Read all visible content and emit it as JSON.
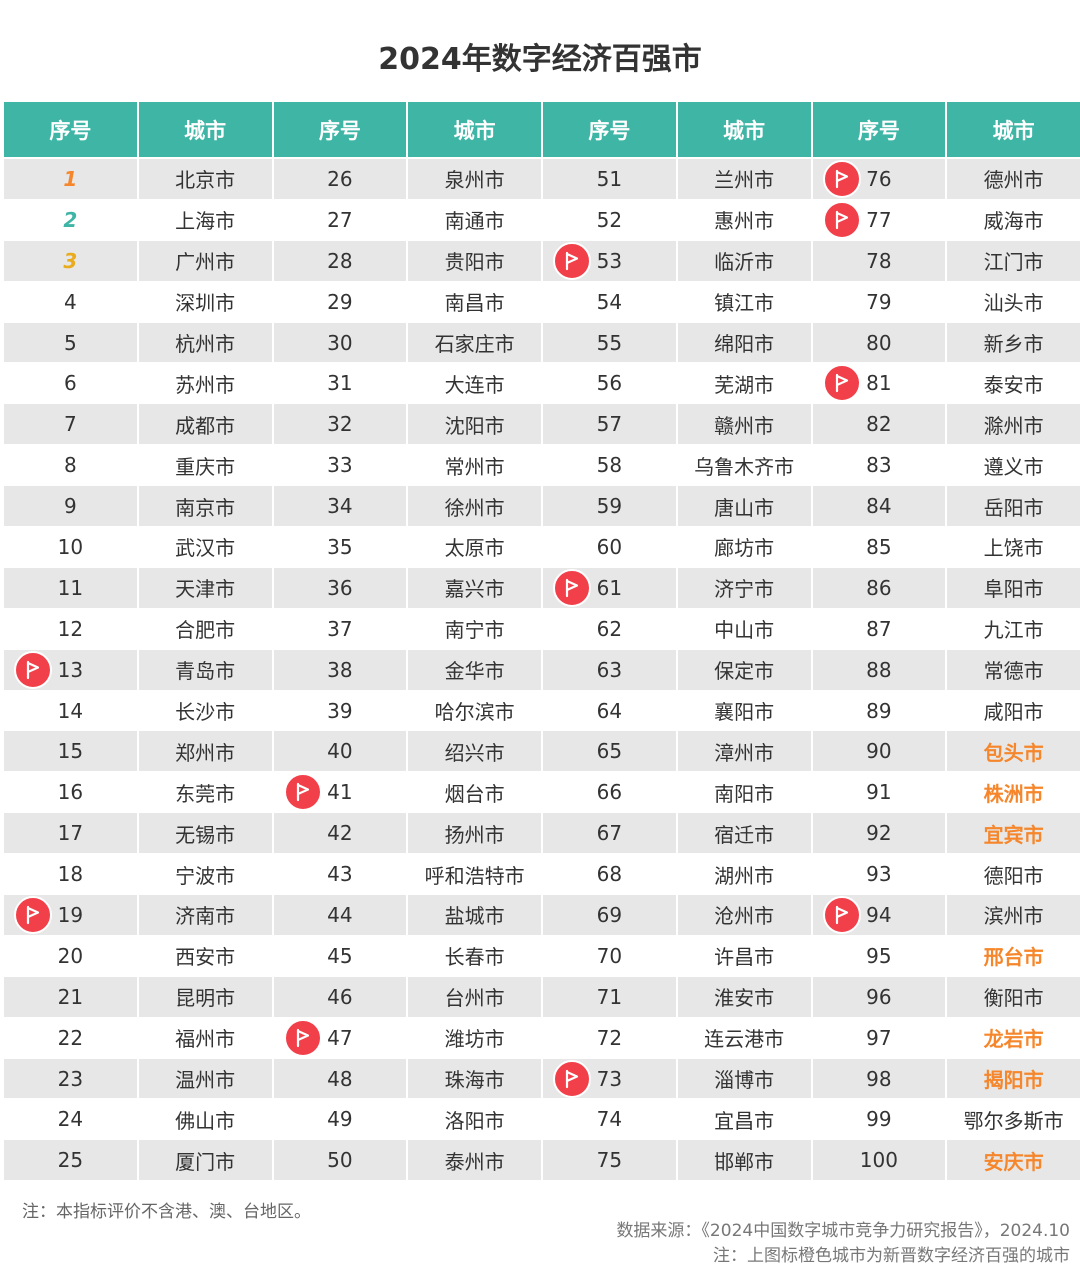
{
  "title": "2024年数字经济百强市",
  "headers": [
    "序号",
    "城市",
    "序号",
    "城市",
    "序号",
    "城市",
    "序号",
    "城市"
  ],
  "colors": {
    "header": "#3fb5a6",
    "flag": "#f2404a",
    "new_city": "#f5862b",
    "rank1": "#f5862b",
    "rank2": "#3fb5a6",
    "rank3": "#e9ac1f"
  },
  "cities": [
    "北京市",
    "上海市",
    "广州市",
    "深圳市",
    "杭州市",
    "苏州市",
    "成都市",
    "重庆市",
    "南京市",
    "武汉市",
    "天津市",
    "合肥市",
    "青岛市",
    "长沙市",
    "郑州市",
    "东莞市",
    "无锡市",
    "宁波市",
    "济南市",
    "西安市",
    "昆明市",
    "福州市",
    "温州市",
    "佛山市",
    "厦门市",
    "泉州市",
    "南通市",
    "贵阳市",
    "南昌市",
    "石家庄市",
    "大连市",
    "沈阳市",
    "常州市",
    "徐州市",
    "太原市",
    "嘉兴市",
    "南宁市",
    "金华市",
    "哈尔滨市",
    "绍兴市",
    "烟台市",
    "扬州市",
    "呼和浩特市",
    "盐城市",
    "长春市",
    "台州市",
    "潍坊市",
    "珠海市",
    "洛阳市",
    "泰州市",
    "兰州市",
    "惠州市",
    "临沂市",
    "镇江市",
    "绵阳市",
    "芜湖市",
    "赣州市",
    "乌鲁木齐市",
    "唐山市",
    "廊坊市",
    "济宁市",
    "中山市",
    "保定市",
    "襄阳市",
    "漳州市",
    "南阳市",
    "宿迁市",
    "湖州市",
    "沧州市",
    "许昌市",
    "淮安市",
    "连云港市",
    "淄博市",
    "宜昌市",
    "邯郸市",
    "德州市",
    "威海市",
    "江门市",
    "汕头市",
    "新乡市",
    "泰安市",
    "滁州市",
    "遵义市",
    "岳阳市",
    "上饶市",
    "阜阳市",
    "九江市",
    "常德市",
    "咸阳市",
    "包头市",
    "株洲市",
    "宜宾市",
    "德阳市",
    "滨州市",
    "邢台市",
    "衡阳市",
    "龙岩市",
    "揭阳市",
    "鄂尔多斯市",
    "安庆市"
  ],
  "flagged_ranks": [
    13,
    19,
    41,
    47,
    53,
    61,
    73,
    76,
    77,
    81,
    94
  ],
  "new_city_ranks": [
    90,
    91,
    92,
    95,
    97,
    98,
    100
  ],
  "footer": {
    "note": "注：本指标评价不含港、澳、台地区。",
    "source": "数据来源：《2024中国数字城市竞争力研究报告》，2024.10",
    "legend_note": "注：上图标橙色城市为新晋数字经济百强的城市"
  }
}
